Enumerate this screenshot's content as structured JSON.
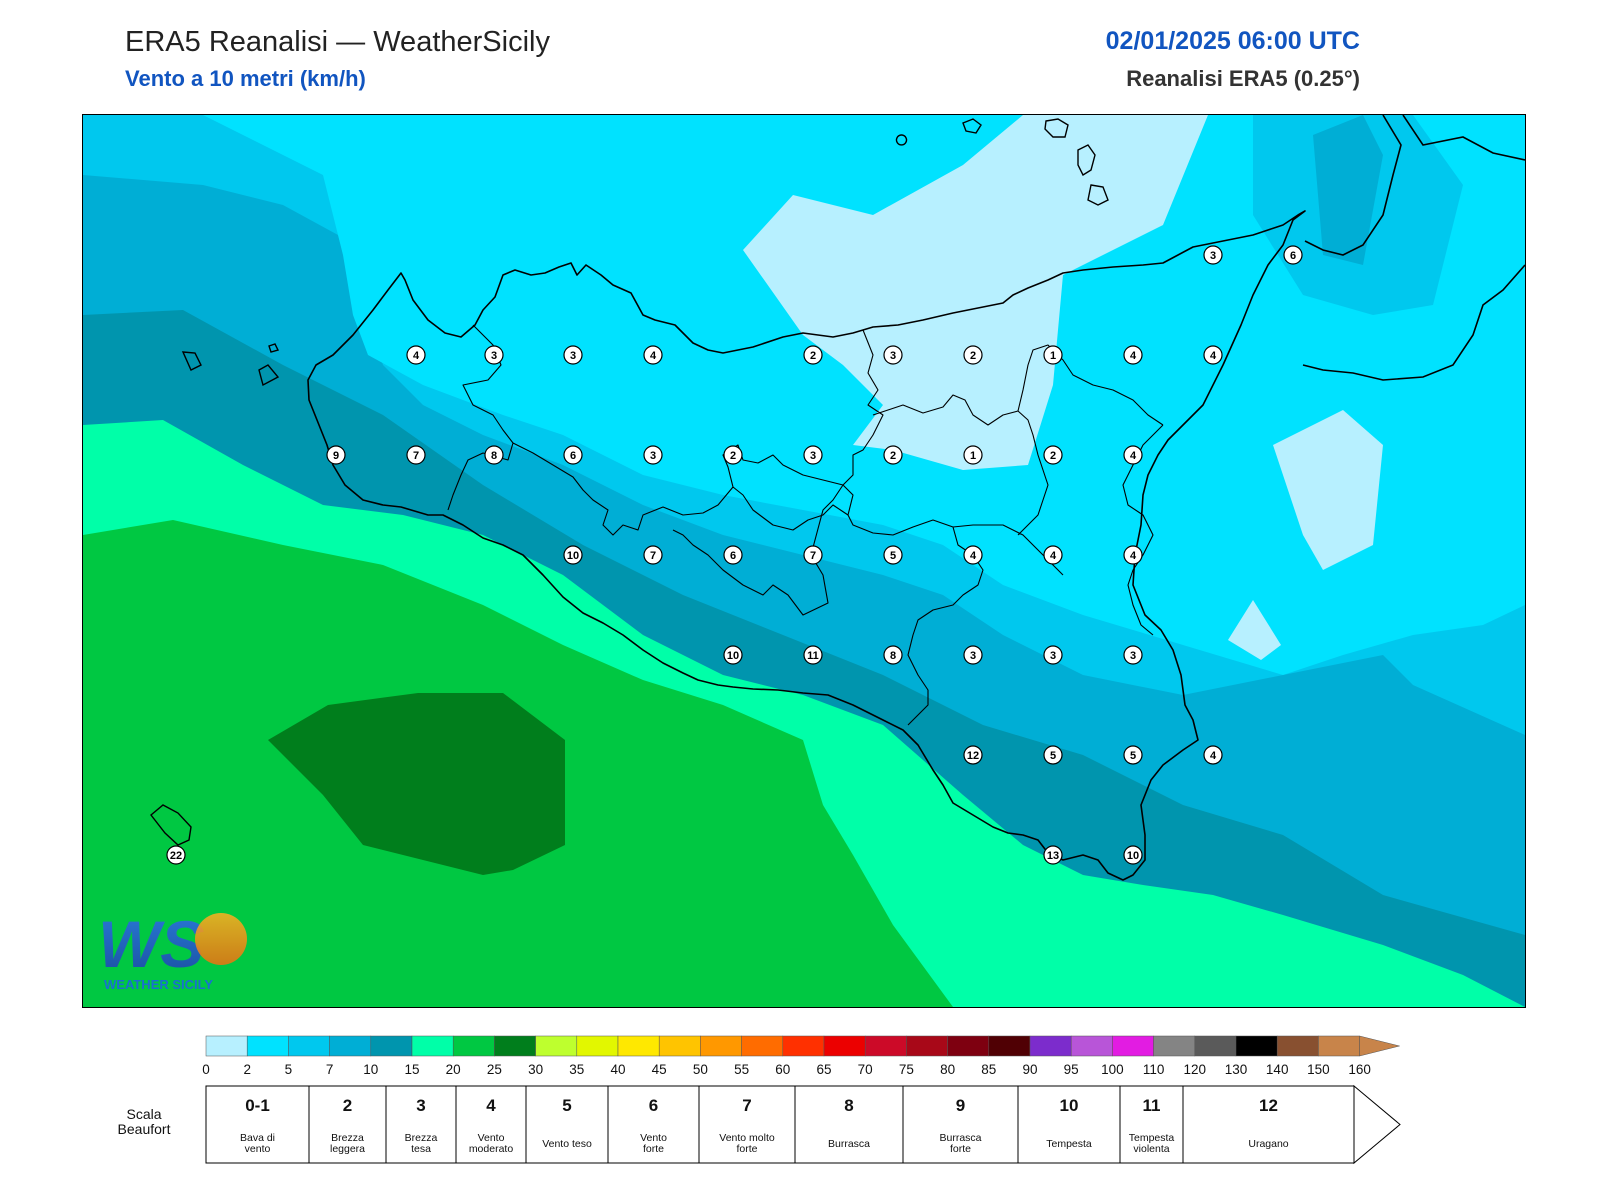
{
  "header": {
    "title": "ERA5 Reanalisi — WeatherSicily",
    "subtitle": "Vento a 10 metri (km/h)",
    "datetime": "02/01/2025 06:00 UTC",
    "source": "Reanalisi ERA5 (0.25°)"
  },
  "logo": {
    "letters": "WS",
    "text": "WEATHER SICILY"
  },
  "stations": [
    {
      "v": "4"
    },
    {
      "v": "3"
    },
    {
      "v": "3"
    },
    {
      "v": "4"
    },
    {
      "v": "2"
    },
    {
      "v": "3"
    },
    {
      "v": "2"
    },
    {
      "v": "1"
    },
    {
      "v": "4"
    },
    {
      "v": "4"
    },
    {
      "v": "9"
    },
    {
      "v": "7"
    },
    {
      "v": "8"
    },
    {
      "v": "6"
    },
    {
      "v": "3"
    },
    {
      "v": "2"
    },
    {
      "v": "3"
    },
    {
      "v": "2"
    },
    {
      "v": "1"
    },
    {
      "v": "2"
    },
    {
      "v": "4"
    },
    {
      "v": "10"
    },
    {
      "v": "7"
    },
    {
      "v": "6"
    },
    {
      "v": "7"
    },
    {
      "v": "5"
    },
    {
      "v": "4"
    },
    {
      "v": "4"
    },
    {
      "v": "4"
    },
    {
      "v": "10"
    },
    {
      "v": "11"
    },
    {
      "v": "8"
    },
    {
      "v": "3"
    },
    {
      "v": "3"
    },
    {
      "v": "3"
    },
    {
      "v": "12"
    },
    {
      "v": "5"
    },
    {
      "v": "5"
    },
    {
      "v": "4"
    },
    {
      "v": "13"
    },
    {
      "v": "10"
    },
    {
      "v": "3"
    },
    {
      "v": "6"
    },
    {
      "v": "22"
    }
  ],
  "colorbar": {
    "colors": [
      "#b7f0ff",
      "#00e2ff",
      "#00c8ee",
      "#00aed5",
      "#0095ae",
      "#00ffa8",
      "#00c842",
      "#007e1c",
      "#beff2e",
      "#e2f700",
      "#ffe800",
      "#ffc400",
      "#ff9800",
      "#ff6c00",
      "#ff3000",
      "#ec0000",
      "#cc0a28",
      "#a80818",
      "#7e0010",
      "#500004",
      "#7c2ccc",
      "#b855d8",
      "#e21ce2",
      "#848484",
      "#5a5a5a",
      "#000000",
      "#885030",
      "#c8844a"
    ],
    "ticks": [
      "0",
      "2",
      "5",
      "7",
      "10",
      "15",
      "20",
      "25",
      "30",
      "35",
      "40",
      "45",
      "50",
      "55",
      "60",
      "65",
      "70",
      "75",
      "80",
      "85",
      "90",
      "95",
      "100",
      "110",
      "120",
      "130",
      "140",
      "150",
      "160"
    ]
  },
  "beaufort": {
    "label_line1": "Scala",
    "label_line2": "Beaufort",
    "items": [
      {
        "num": "0-1",
        "line1": "Bava di",
        "line2": "vento"
      },
      {
        "num": "2",
        "line1": "Brezza",
        "line2": "leggera"
      },
      {
        "num": "3",
        "line1": "Brezza",
        "line2": "tesa"
      },
      {
        "num": "4",
        "line1": "Vento",
        "line2": "moderato"
      },
      {
        "num": "5",
        "line1": "Vento teso",
        "line2": ""
      },
      {
        "num": "6",
        "line1": "Vento",
        "line2": "forte"
      },
      {
        "num": "7",
        "line1": "Vento molto",
        "line2": "forte"
      },
      {
        "num": "8",
        "line1": "Burrasca",
        "line2": ""
      },
      {
        "num": "9",
        "line1": "Burrasca",
        "line2": "forte"
      },
      {
        "num": "10",
        "line1": "Tempesta",
        "line2": ""
      },
      {
        "num": "11",
        "line1": "Tempesta",
        "line2": "violenta"
      },
      {
        "num": "12",
        "line1": "Uragano",
        "line2": ""
      }
    ]
  }
}
